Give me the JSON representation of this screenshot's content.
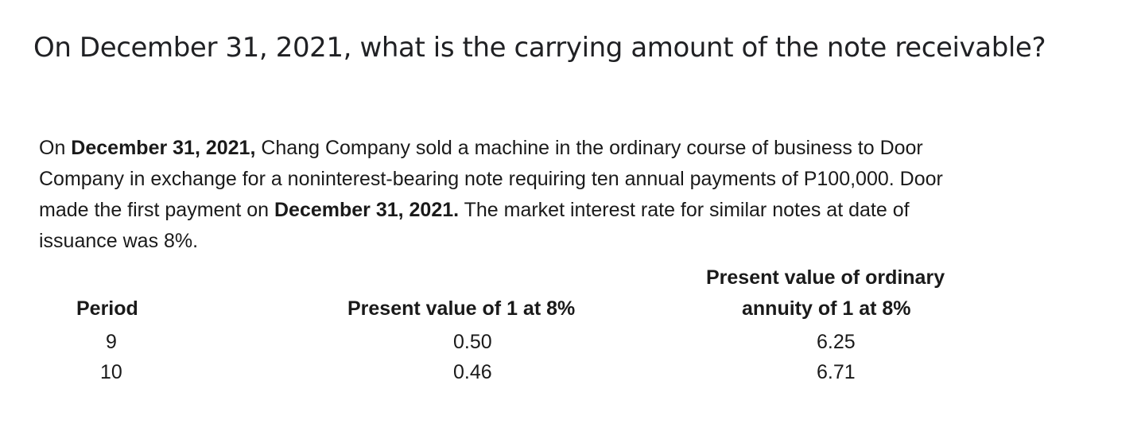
{
  "question": "On December 31, 2021, what is the carrying amount of the note receivable?",
  "problem": {
    "line1_a": "On ",
    "line1_b": "December 31, 2021,",
    "line1_c": " Chang Company sold a machine in the ordinary course of business to Door",
    "line2": "Company in exchange for a noninterest-bearing note requiring ten annual payments of P100,000. Door",
    "line3_a": "made the first payment on ",
    "line3_b": "December 31, 2021.",
    "line3_c": " The market interest rate for similar notes at date of",
    "line4": "issuance was 8%."
  },
  "table": {
    "headers": {
      "period": "Period",
      "pv1": "Present value of 1 at 8%",
      "pva_line1": "Present value of ordinary",
      "pva_line2": "annuity of 1 at 8%"
    },
    "rows": [
      {
        "period": "9",
        "pv1": "0.50",
        "pva": "6.25"
      },
      {
        "period": "10",
        "pv1": "0.46",
        "pva": "6.71"
      }
    ]
  }
}
